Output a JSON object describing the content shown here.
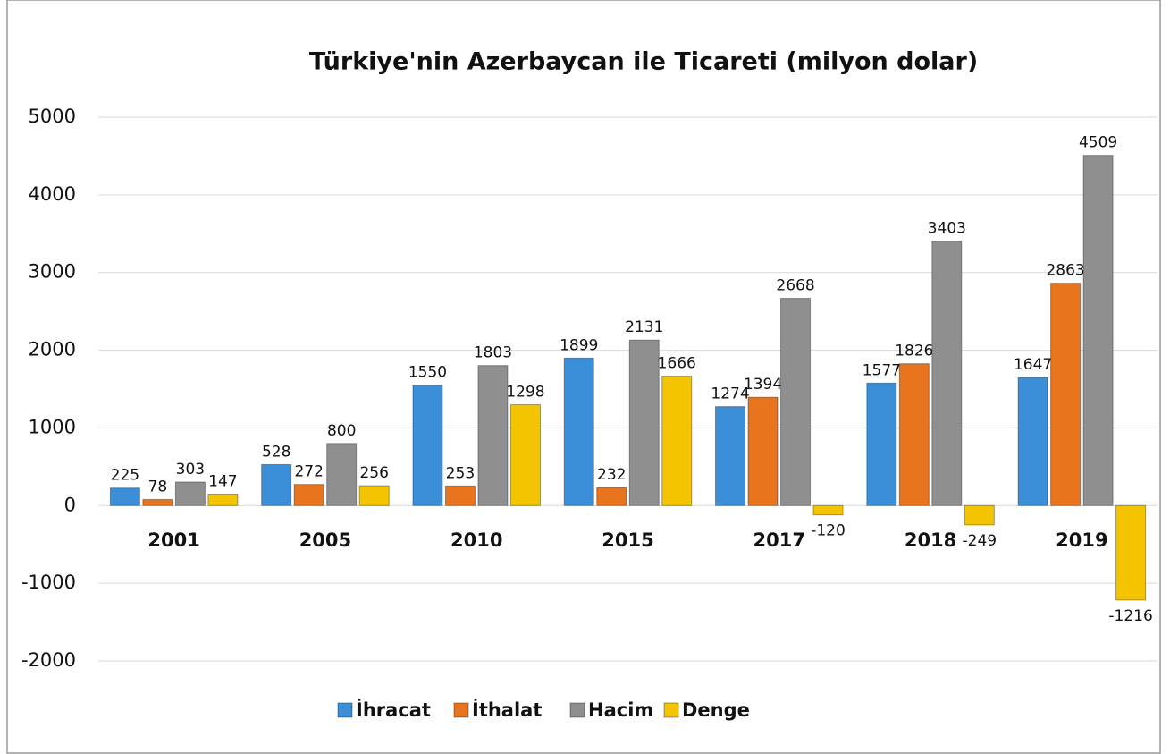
{
  "chart_data": {
    "type": "bar",
    "title": "Türkiye'nin Azerbaycan ile Ticareti (milyon dolar)",
    "categories": [
      "2001",
      "2005",
      "2010",
      "2015",
      "2017",
      "2018",
      "2019"
    ],
    "series": [
      {
        "name": "İhracat",
        "color": "#3a8fd8",
        "values": [
          225,
          528,
          1550,
          1899,
          1274,
          1577,
          1647
        ]
      },
      {
        "name": "İthalat",
        "color": "#e8741e",
        "values": [
          78,
          272,
          253,
          232,
          1394,
          1826,
          2863
        ]
      },
      {
        "name": "Hacim",
        "color": "#8f8f8f",
        "values": [
          303,
          800,
          1803,
          2131,
          2668,
          3403,
          4509
        ]
      },
      {
        "name": "Denge",
        "color": "#f5c400",
        "values": [
          147,
          256,
          1298,
          1666,
          -120,
          -249,
          -1216
        ]
      }
    ],
    "ylim": [
      -2000,
      5000
    ],
    "yticks": [
      -2000,
      -1000,
      0,
      1000,
      2000,
      3000,
      4000,
      5000
    ],
    "grid": true
  }
}
